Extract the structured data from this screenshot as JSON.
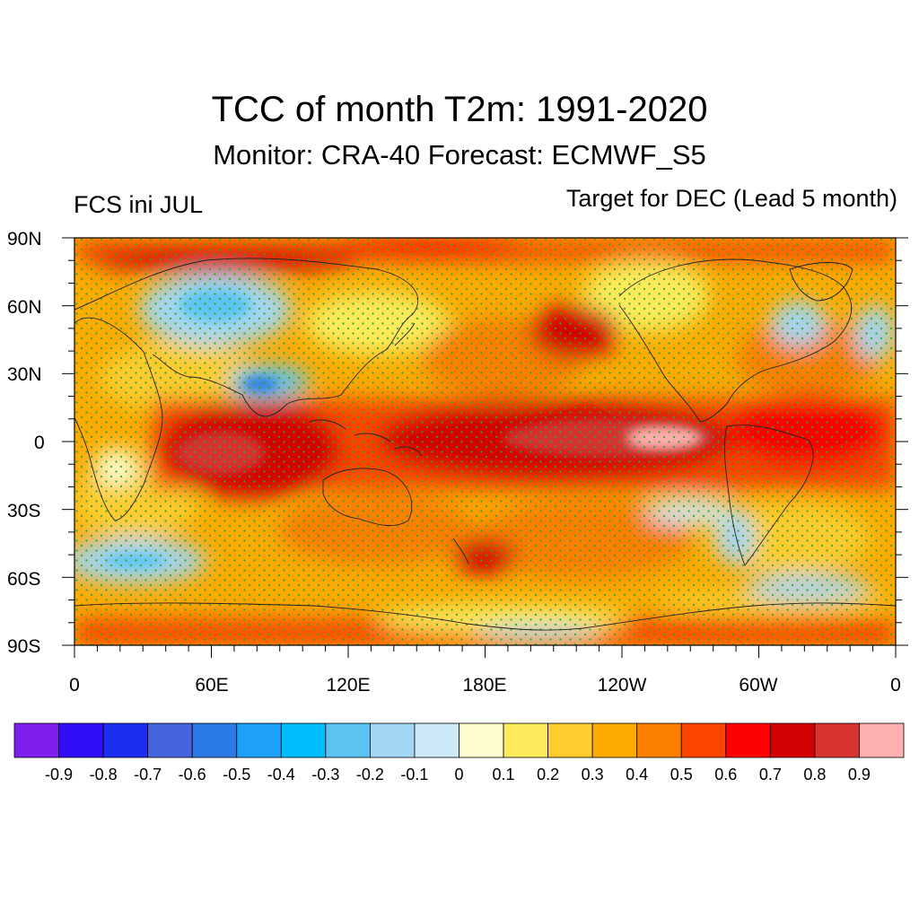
{
  "title": "TCC of month T2m: 1991-2020",
  "subtitle": "Monitor: CRA-40   Forecast: ECMWF_S5",
  "left_label": "FCS ini JUL",
  "right_label": "Target for DEC (Lead 5 month)",
  "lat_ticks": [
    "90N",
    "60N",
    "30N",
    "0",
    "30S",
    "60S",
    "90S"
  ],
  "lon_ticks": [
    "0",
    "60E",
    "120E",
    "180E",
    "120W",
    "60W",
    "0"
  ],
  "colorbar": {
    "colors": [
      "#7f1fee",
      "#2f10f6",
      "#1c2ef0",
      "#4463dd",
      "#2c7ae8",
      "#1da0f8",
      "#00bcfa",
      "#5cc4f2",
      "#a2d6f2",
      "#cde8f7",
      "#fffdcf",
      "#fdeb5c",
      "#fecc2d",
      "#fdaa01",
      "#fd7f01",
      "#fe4401",
      "#fe0101",
      "#d40202",
      "#d63331",
      "#feb1b0"
    ],
    "labels": [
      "-0.9",
      "-0.8",
      "-0.7",
      "-0.6",
      "-0.5",
      "-0.4",
      "-0.3",
      "-0.2",
      "-0.1",
      "0",
      "0.1",
      "0.2",
      "0.3",
      "0.4",
      "0.5",
      "0.6",
      "0.7",
      "0.8",
      "0.9"
    ]
  }
}
